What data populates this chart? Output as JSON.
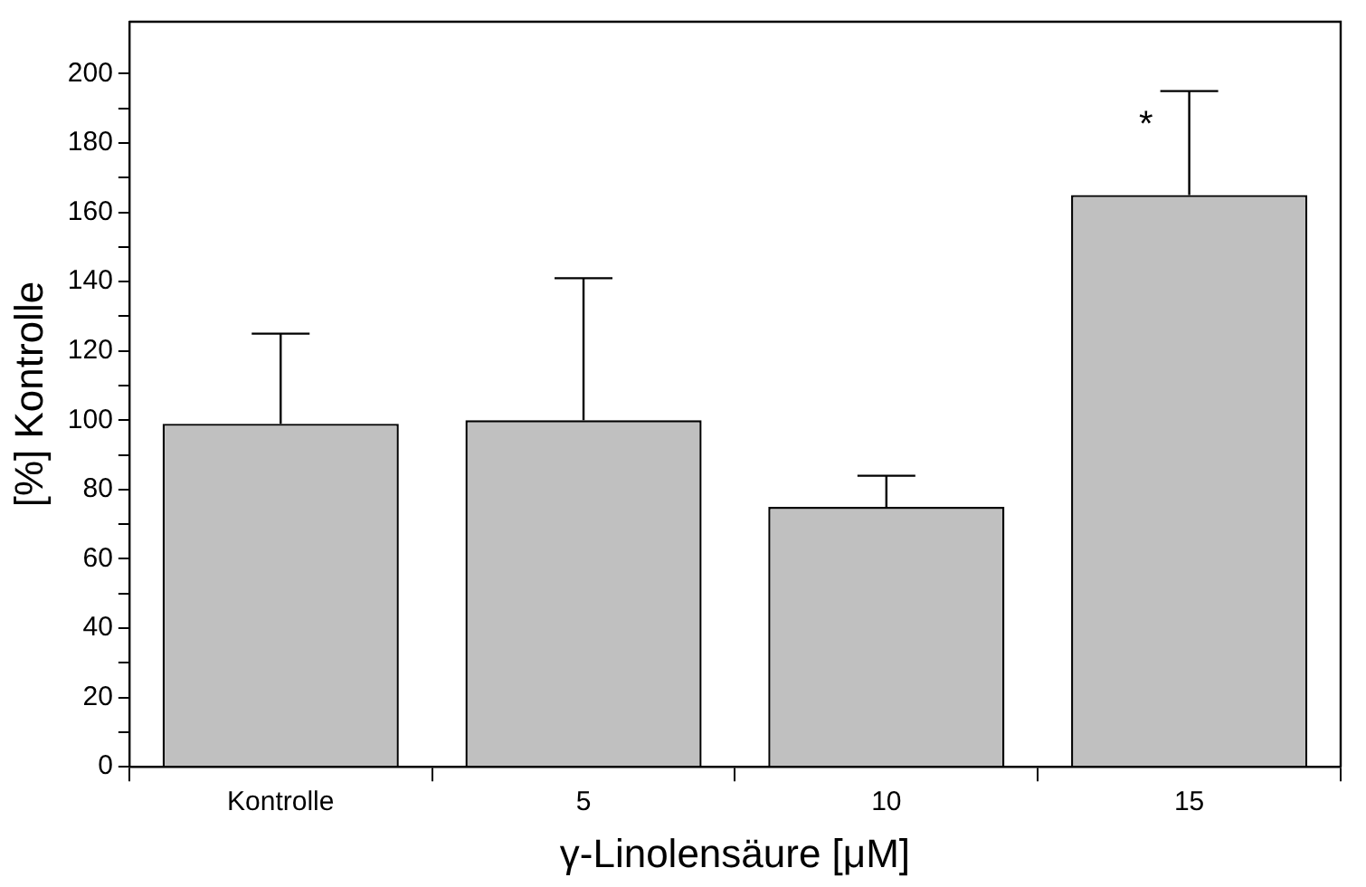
{
  "chart_data": {
    "type": "bar",
    "xlabel": "γ-Linolensäure [μM]",
    "ylabel": "[%] Kontrolle",
    "categories": [
      "Kontrolle",
      "5",
      "10",
      "15"
    ],
    "values": [
      99,
      100,
      75,
      165
    ],
    "color": "#c0c0c0",
    "errors": [
      [
        99,
        125
      ],
      [
        100,
        141
      ],
      [
        75,
        84
      ],
      [
        165,
        195
      ]
    ],
    "ylim": [
      0,
      215
    ],
    "yticks": [
      0,
      {
        "value": 10,
        "label": null
      },
      20,
      {
        "value": 30,
        "label": null
      },
      40,
      {
        "value": 50,
        "label": null
      },
      60,
      {
        "value": 70,
        "label": null
      },
      80,
      {
        "value": 90,
        "label": null
      },
      100,
      {
        "value": 110,
        "label": null
      },
      120,
      {
        "value": 130,
        "label": null
      },
      140,
      {
        "value": 150,
        "label": null
      },
      160,
      {
        "value": 170,
        "label": null
      },
      180,
      {
        "value": 190,
        "label": null
      },
      200
    ],
    "annotations": [
      {
        "text": "*",
        "x": "15",
        "y": 185
      }
    ],
    "grid": false,
    "legend": false
  }
}
